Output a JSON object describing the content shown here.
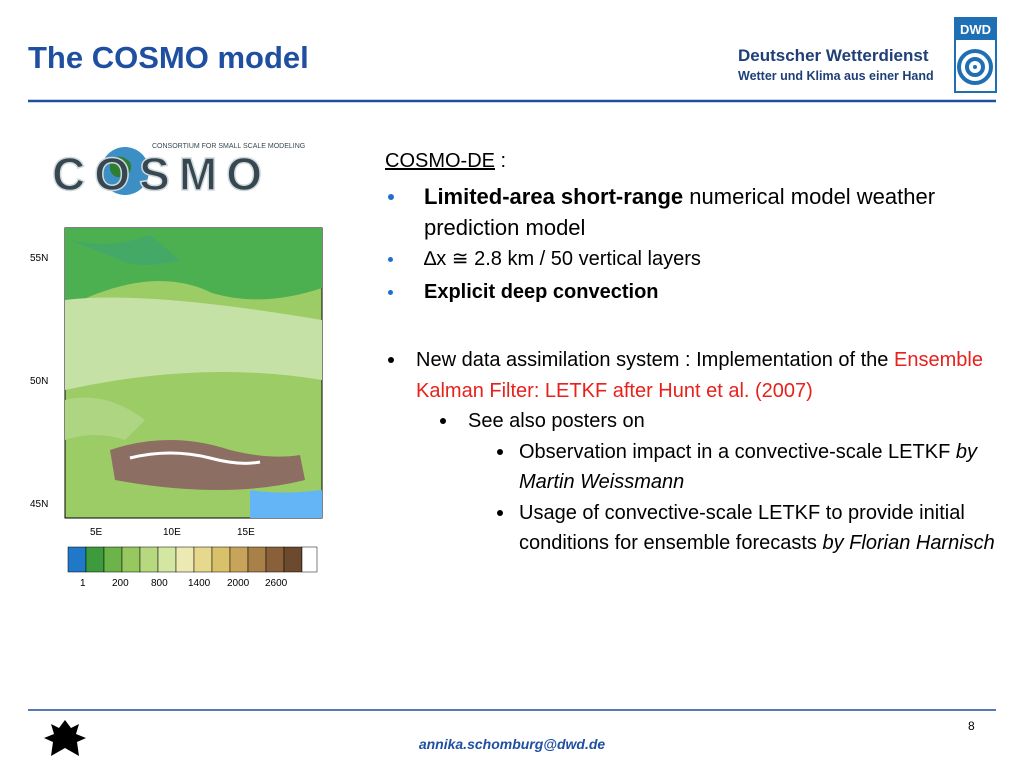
{
  "header": {
    "title": "The COSMO model",
    "org_name": "Deutscher Wetterdienst",
    "org_tagline": "Wetter und Klima aus einer Hand",
    "org_short": "DWD"
  },
  "logo": {
    "name": "COSMO",
    "subtitle": "CONSORTIUM FOR SMALL SCALE MODELING"
  },
  "map": {
    "lat_labels": [
      "55N",
      "50N",
      "45N"
    ],
    "lon_labels": [
      "5E",
      "10E",
      "15E"
    ],
    "colorbar_labels": [
      "1",
      "200",
      "800",
      "1400",
      "2000",
      "2600"
    ]
  },
  "content": {
    "heading": "COSMO-DE",
    "heading_suffix": " :",
    "bullets": [
      {
        "level": 0,
        "marker": "blue",
        "size": "large",
        "parts": [
          {
            "text": "Limited-area short-range",
            "style": "bold"
          },
          {
            "text": " numerical model weather prediction model",
            "style": "normal"
          }
        ]
      },
      {
        "level": 0,
        "marker": "blue",
        "size": "small",
        "parts": [
          {
            "text": "∆x ≅ 2.8 km / 50 vertical layers",
            "style": "normal"
          }
        ]
      },
      {
        "level": 0,
        "marker": "blue",
        "size": "small",
        "parts": [
          {
            "text": "Explicit deep convection",
            "style": "bold"
          }
        ]
      },
      {
        "level": 0,
        "marker": "black",
        "size": "medium",
        "parts": [
          {
            "text": "New data assimilation system : Implementation of the ",
            "style": "normal"
          },
          {
            "text": "Ensemble Kalman Filter: LETKF after Hunt et al. (2007)",
            "style": "red"
          }
        ]
      },
      {
        "level": 1,
        "marker": "black",
        "size": "medium",
        "parts": [
          {
            "text": "See also posters on",
            "style": "normal"
          }
        ]
      },
      {
        "level": 2,
        "marker": "black",
        "size": "medium",
        "parts": [
          {
            "text": "Observation impact in a convective-scale LETKF ",
            "style": "normal"
          },
          {
            "text": "by Martin Weissmann",
            "style": "italic"
          }
        ]
      },
      {
        "level": 2,
        "marker": "black",
        "size": "medium",
        "parts": [
          {
            "text": "Usage of convective-scale LETKF to provide initial conditions for ensemble forecasts ",
            "style": "normal"
          },
          {
            "text": "by Florian Harnisch",
            "style": "italic"
          }
        ]
      }
    ]
  },
  "footer": {
    "email": "annika.schomburg@dwd.de",
    "page": "8"
  }
}
